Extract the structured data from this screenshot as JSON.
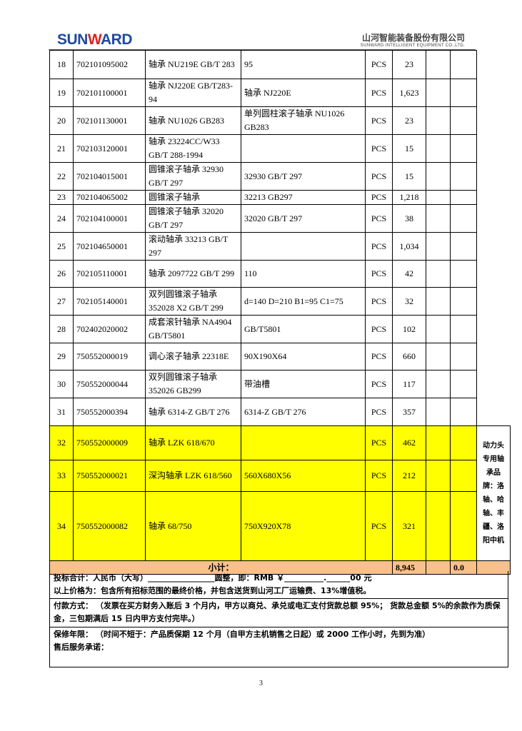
{
  "header": {
    "logo_text": "SUNWARD",
    "company_cn": "山河智能装备股份有限公司",
    "company_en": "SUNWARD INTELLIGENT EQUIPMENT CO.,LTD."
  },
  "rows": [
    {
      "no": "18",
      "code": "702101095002",
      "name": "轴承 NU219E GB/T 283",
      "spec": "95",
      "unit": "PCS",
      "qty": "23"
    },
    {
      "no": "19",
      "code": "702101100001",
      "name": "轴承 NJ220E GB/T283-94",
      "spec": "轴承 NJ220E",
      "unit": "PCS",
      "qty": "1,623"
    },
    {
      "no": "20",
      "code": "702101130001",
      "name": "轴承 NU1026 GB283",
      "spec": "单列圆柱滚子轴承 NU1026 GB283",
      "unit": "PCS",
      "qty": "23"
    },
    {
      "no": "21",
      "code": "702103120001",
      "name": "轴承 23224CC/W33 GB/T 288-1994",
      "spec": "",
      "unit": "PCS",
      "qty": "15"
    },
    {
      "no": "22",
      "code": "702104015001",
      "name": "圆锥滚子轴承 32930 GB/T 297",
      "spec": "32930 GB/T 297",
      "unit": "PCS",
      "qty": "15"
    },
    {
      "no": "23",
      "code": "702104065002",
      "name": "圆锥滚子轴承",
      "spec": "32213 GB297",
      "unit": "PCS",
      "qty": "1,218"
    },
    {
      "no": "24",
      "code": "702104100001",
      "name": "圆锥滚子轴承 32020 GB/T 297",
      "spec": "32020 GB/T 297",
      "unit": "PCS",
      "qty": "38"
    },
    {
      "no": "25",
      "code": "702104650001",
      "name": "滚动轴承 33213 GB/T 297",
      "spec": "",
      "unit": "PCS",
      "qty": "1,034"
    },
    {
      "no": "26",
      "code": "702105110001",
      "name": "轴承 2097722 GB/T 299",
      "spec": "110",
      "unit": "PCS",
      "qty": "42"
    },
    {
      "no": "27",
      "code": "702105140001",
      "name": "双列圆锥滚子轴承 352028 X2 GB/T 299",
      "spec": "d=140 D=210 B1=95 C1=75",
      "unit": "PCS",
      "qty": "32"
    },
    {
      "no": "28",
      "code": "702402020002",
      "name": "成套滚针轴承 NA4904 GB/T5801",
      "spec": "GB/T5801",
      "unit": "PCS",
      "qty": "102"
    },
    {
      "no": "29",
      "code": "750552000019",
      "name": "调心滚子轴承 22318E",
      "spec": "90X190X64",
      "unit": "PCS",
      "qty": "660"
    },
    {
      "no": "30",
      "code": "750552000044",
      "name": "双列圆锥滚子轴承 352026 GB299",
      "spec": "带油槽",
      "unit": "PCS",
      "qty": "117"
    },
    {
      "no": "31",
      "code": "750552000394",
      "name": "轴承 6314-Z GB/T 276",
      "spec": "6314-Z GB/T 276",
      "unit": "PCS",
      "qty": "357"
    }
  ],
  "highlight_rows": [
    {
      "no": "32",
      "code": "750552000009",
      "name": "轴承 LZK 618/670",
      "spec": "",
      "unit": "PCS",
      "qty": "462"
    },
    {
      "no": "33",
      "code": "750552000021",
      "name": "深沟轴承 LZK 618/560",
      "spec": "560X680X56",
      "unit": "PCS",
      "qty": "212"
    },
    {
      "no": "34",
      "code": "750552000082",
      "name": "轴承 68/750",
      "spec": "750X920X78",
      "unit": "PCS",
      "qty": "321"
    }
  ],
  "highlight_note": "动力头专用轴承品牌：洛轴、哈轴、丰疆、洛阳中机",
  "subtotal": {
    "label": "小计：",
    "qty": "8,945",
    "amount": "0.0"
  },
  "colors": {
    "highlight": "#ffff00",
    "subtotal": "#f8c08c"
  },
  "footer": {
    "total_line": "投标合计：人民币（大写）_________________圆整，即：RMB ￥__________.______00 元",
    "price_note": "以上价格为：包含所有招标范围的最终价格，并包含送货到山河工厂运输费、13%增值税。",
    "payment": "付款方式： （发票在买方财务入账后 3 个月内，甲方以商兑、承兑或电汇支付货款总额 95%； 货款总金额 5%的余款作为质保金，三包期满后 15 日内甲方支付完毕。）",
    "warranty": "保修年限： （时间不短于：产品质保期 12 个月（自甲方主机销售之日起）或 2000 工作小时，先到为准）",
    "service": "售后服务承诺："
  },
  "page_number": "3"
}
